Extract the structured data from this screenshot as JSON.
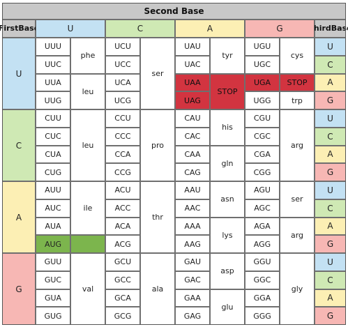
{
  "header": {
    "second_base": "Second Base",
    "first_base": [
      "First",
      "Base"
    ],
    "third_base": [
      "Third",
      "Base"
    ]
  },
  "bases": [
    "U",
    "C",
    "A",
    "G"
  ],
  "colors": {
    "U": "#c3e1f3",
    "C": "#cfe9b4",
    "A": "#fcefb4",
    "G": "#f7b7b4",
    "header": "#c8c8c8",
    "stop": "#d23440",
    "start": "#7cb54d",
    "white": "#ffffff"
  },
  "codon_rows": [
    [
      "UUU",
      "UCU",
      "UAU",
      "UGU"
    ],
    [
      "UUC",
      "UCC",
      "UAC",
      "UGC"
    ],
    [
      "UUA",
      "UCA",
      "UAA",
      "UGA"
    ],
    [
      "UUG",
      "UCG",
      "UAG",
      "UGG"
    ],
    [
      "CUU",
      "CCU",
      "CAU",
      "CGU"
    ],
    [
      "CUC",
      "CCC",
      "CAC",
      "CGC"
    ],
    [
      "CUA",
      "CCA",
      "CAA",
      "CGA"
    ],
    [
      "CUG",
      "CCG",
      "CAG",
      "CGG"
    ],
    [
      "AUU",
      "ACU",
      "AAU",
      "AGU"
    ],
    [
      "AUC",
      "ACC",
      "AAC",
      "AGC"
    ],
    [
      "AUA",
      "ACA",
      "AAA",
      "AGA"
    ],
    [
      "AUG",
      "ACG",
      "AAG",
      "AGG"
    ],
    [
      "GUU",
      "GCU",
      "GAU",
      "GGU"
    ],
    [
      "GUC",
      "GCC",
      "GAC",
      "GGC"
    ],
    [
      "GUA",
      "GCA",
      "GAA",
      "GGA"
    ],
    [
      "GUG",
      "GCG",
      "GAG",
      "GGG"
    ]
  ],
  "amino_acids": [
    {
      "label": "phe",
      "col": 0,
      "start": 0,
      "span": 2
    },
    {
      "label": "leu",
      "col": 0,
      "start": 2,
      "span": 2
    },
    {
      "label": "ser",
      "col": 1,
      "start": 0,
      "span": 4
    },
    {
      "label": "tyr",
      "col": 2,
      "start": 0,
      "span": 2
    },
    {
      "label": "STOP",
      "col": 2,
      "start": 2,
      "span": 2,
      "stop": true
    },
    {
      "label": "cys",
      "col": 3,
      "start": 0,
      "span": 2
    },
    {
      "label": "STOP",
      "col": 3,
      "start": 2,
      "span": 1,
      "stop": true
    },
    {
      "label": "trp",
      "col": 3,
      "start": 3,
      "span": 1
    },
    {
      "label": "leu",
      "col": 0,
      "start": 4,
      "span": 4
    },
    {
      "label": "pro",
      "col": 1,
      "start": 4,
      "span": 4
    },
    {
      "label": "his",
      "col": 2,
      "start": 4,
      "span": 2
    },
    {
      "label": "gln",
      "col": 2,
      "start": 6,
      "span": 2
    },
    {
      "label": "arg",
      "col": 3,
      "start": 4,
      "span": 4
    },
    {
      "label": "ile",
      "col": 0,
      "start": 8,
      "span": 3
    },
    {
      "label": "",
      "col": 0,
      "start": 11,
      "span": 1,
      "start_codon": true
    },
    {
      "label": "thr",
      "col": 1,
      "start": 8,
      "span": 4
    },
    {
      "label": "asn",
      "col": 2,
      "start": 8,
      "span": 2
    },
    {
      "label": "lys",
      "col": 2,
      "start": 10,
      "span": 2
    },
    {
      "label": "ser",
      "col": 3,
      "start": 8,
      "span": 2
    },
    {
      "label": "arg",
      "col": 3,
      "start": 10,
      "span": 2
    },
    {
      "label": "val",
      "col": 0,
      "start": 12,
      "span": 4
    },
    {
      "label": "ala",
      "col": 1,
      "start": 12,
      "span": 4
    },
    {
      "label": "asp",
      "col": 2,
      "start": 12,
      "span": 2
    },
    {
      "label": "glu",
      "col": 2,
      "start": 14,
      "span": 2
    },
    {
      "label": "gly",
      "col": 3,
      "start": 12,
      "span": 4
    }
  ],
  "stop_codons": [
    "UAA",
    "UAG",
    "UGA"
  ],
  "start_codons": [
    "AUG"
  ]
}
